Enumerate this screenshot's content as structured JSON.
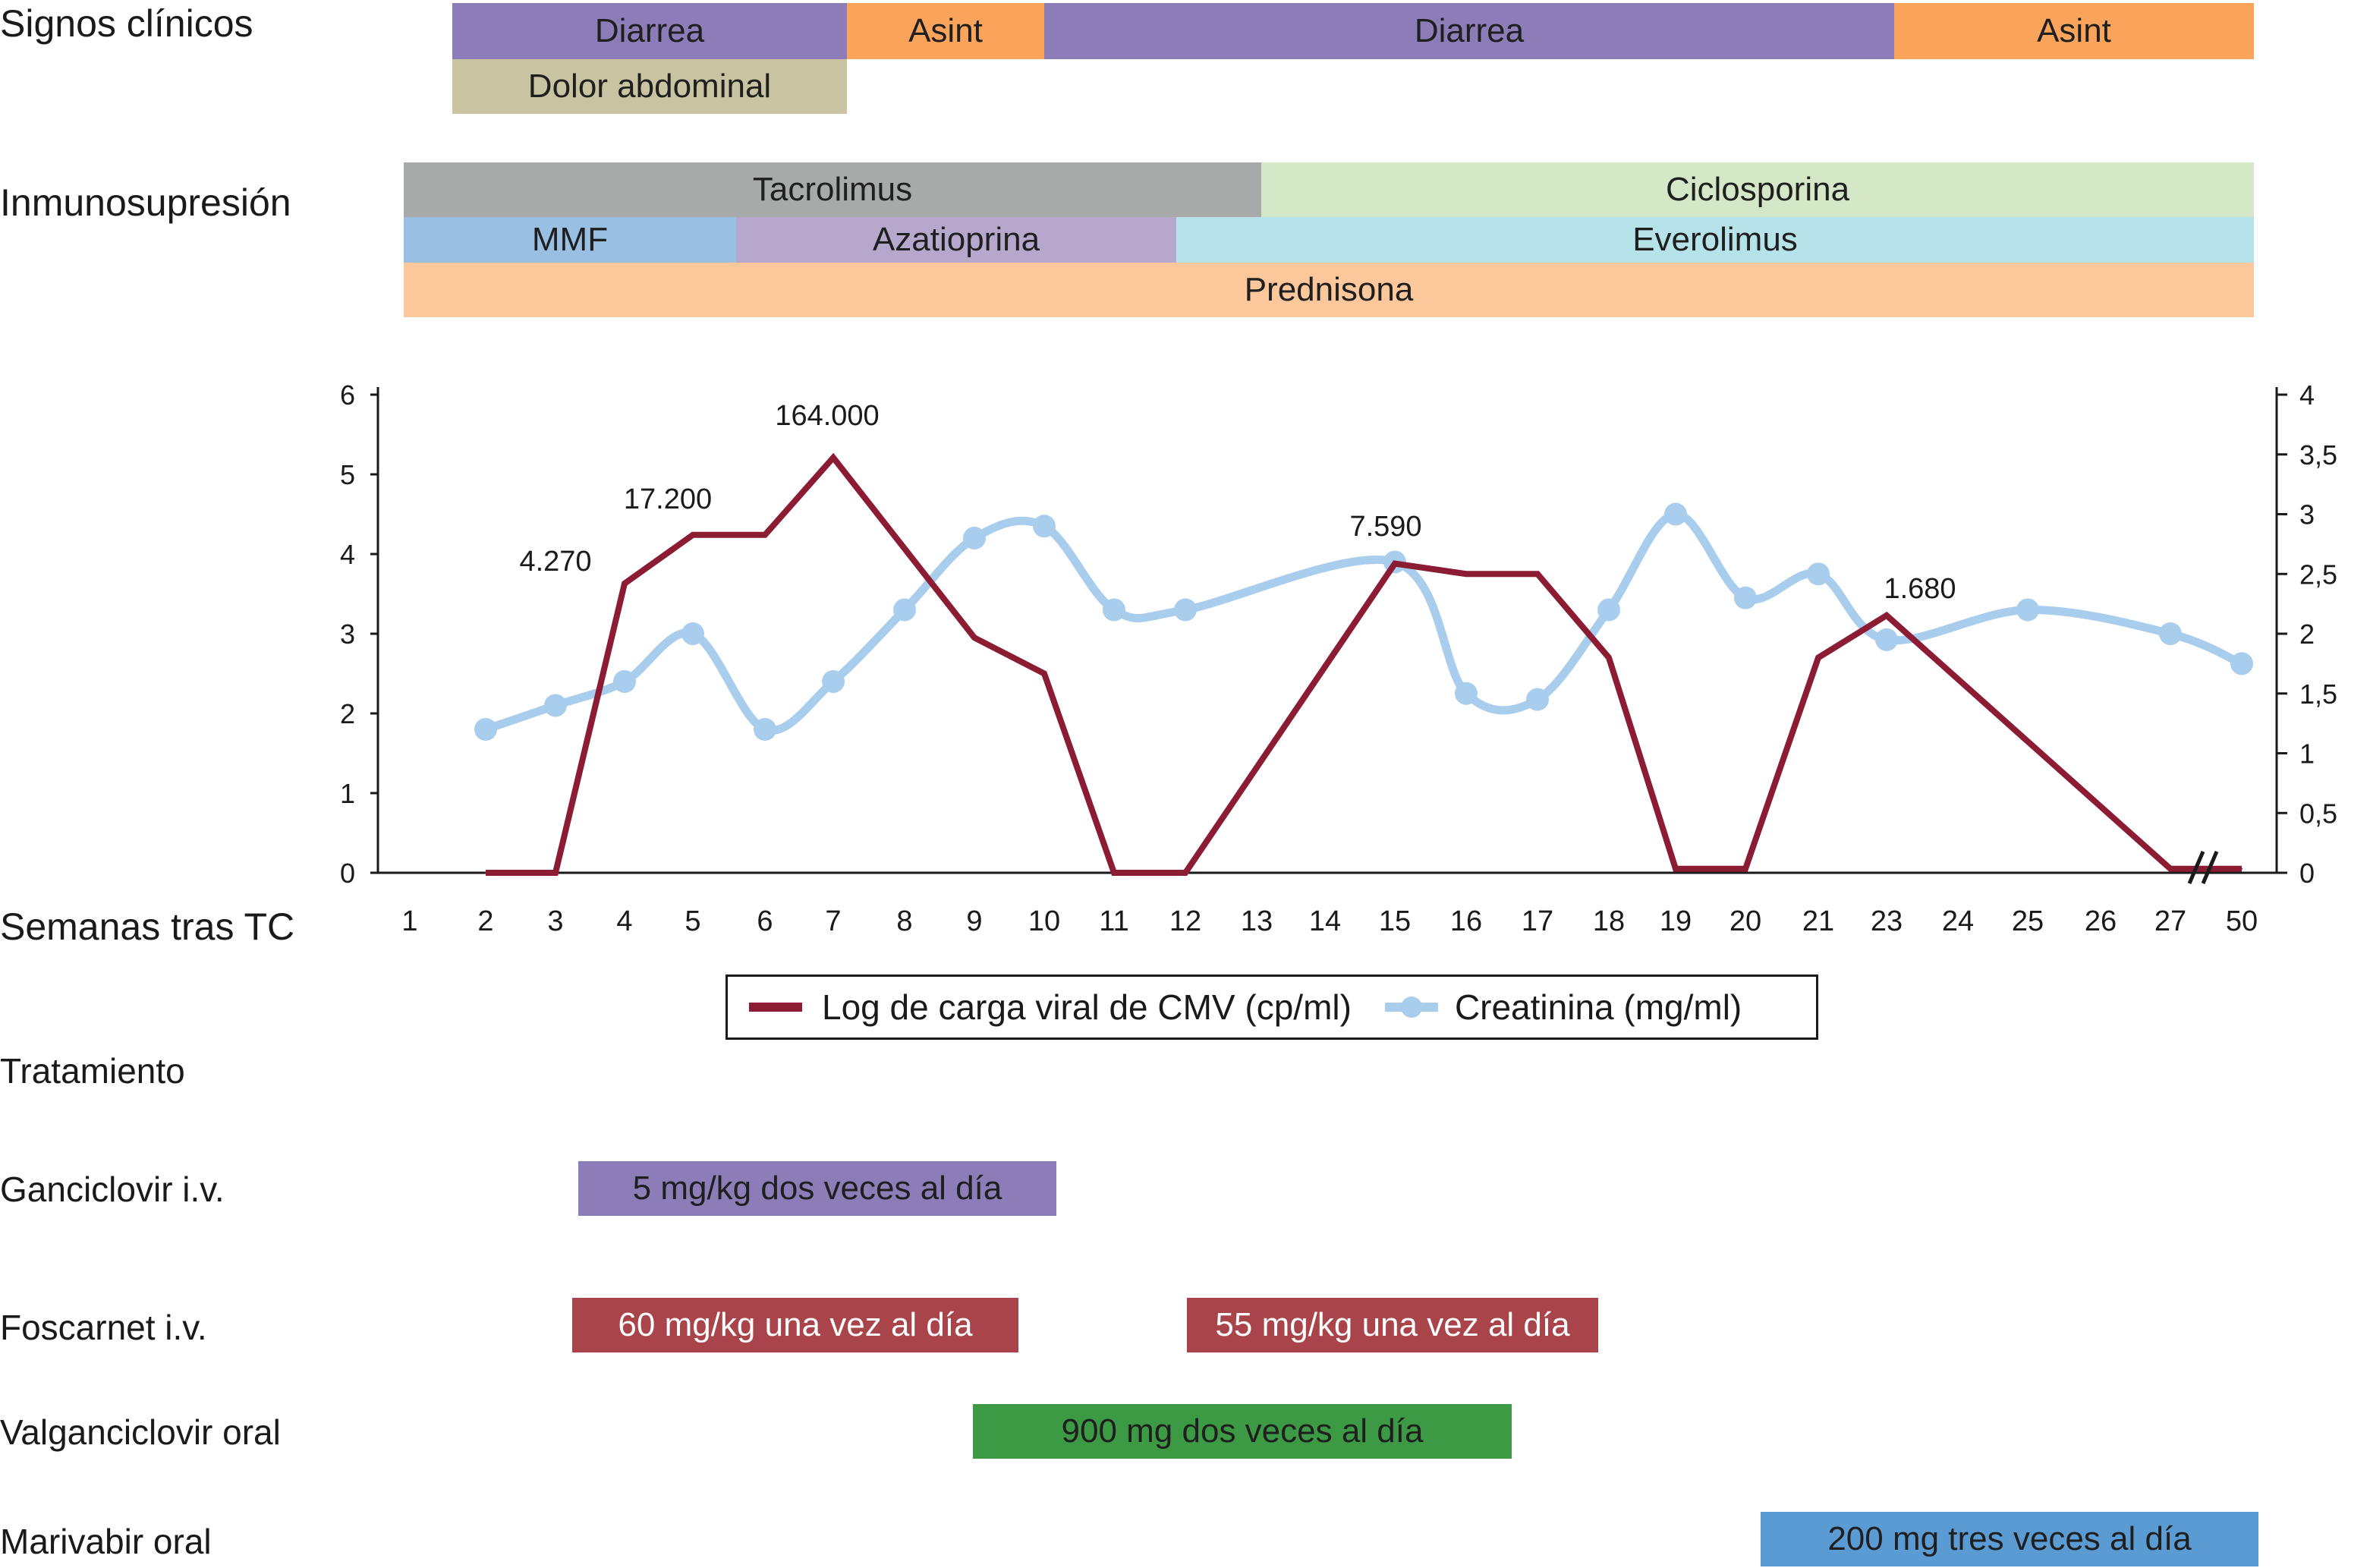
{
  "colors": {
    "viral_line": "#8b1c33",
    "creatinine_line": "#a9cdec",
    "diarrea": "#8c7cb8",
    "asint": "#f9a45a",
    "dolor": "#c8c3a0",
    "tacrolimus": "#a7aaa9",
    "ciclosporina": "#d4e7c6",
    "mmf": "#99bfe2",
    "azatioprina": "#b6a8cd",
    "everolimus": "#b5e3e9",
    "prednisona": "#fcc79b",
    "ganciclovir": "#8c7cb8",
    "foscarnet": "#a8444a",
    "valganciclovir": "#3d9a44",
    "maribavir": "#5b9bd3"
  },
  "labels": {
    "signos": "Signos clínicos",
    "inmuno": "Inmunosupresión",
    "semanas": "Semanas tras TC",
    "tratamiento": "Tratamiento",
    "ganciclovir": "Ganciclovir i.v.",
    "foscarnet": "Foscarnet i.v.",
    "valganciclovir": "Valganciclovir oral",
    "maribavir": "Marivabir oral"
  },
  "bands": {
    "signos": [
      "Diarrea",
      "Asint",
      "Diarrea",
      "Asint",
      "Dolor abdominal"
    ],
    "inmuno": [
      "Tacrolimus",
      "Ciclosporina",
      "MMF",
      "Azatioprina",
      "Everolimus",
      "Prednisona"
    ],
    "tratamiento": {
      "ganciclovir": "5 mg/kg dos veces al día",
      "foscarnet_1": "60 mg/kg una vez al día",
      "foscarnet_2": "55 mg/kg una vez al día",
      "valganciclovir": "900 mg dos veces al día",
      "maribavir": "200 mg tres veces al día"
    }
  },
  "legend": {
    "viral": "Log de carga viral de CMV (cp/ml)",
    "creatinine": "Creatinina (mg/ml)"
  },
  "chart_data": {
    "type": "line",
    "categories": [
      "1",
      "2",
      "3",
      "4",
      "5",
      "6",
      "7",
      "8",
      "9",
      "10",
      "11",
      "12",
      "13",
      "14",
      "15",
      "16",
      "17",
      "18",
      "19",
      "20",
      "21",
      "23",
      "24",
      "25",
      "26",
      "27",
      "50"
    ],
    "y_left": {
      "ylim": [
        0,
        6
      ],
      "ticks": [
        "0",
        "1",
        "2",
        "3",
        "4",
        "5",
        "6"
      ]
    },
    "y_right": {
      "ylim": [
        0,
        4
      ],
      "ticks": [
        "0",
        "0,5",
        "1",
        "1,5",
        "2",
        "2,5",
        "3",
        "3,5",
        "4"
      ]
    },
    "series": [
      {
        "name": "Log de carga viral de CMV (cp/ml)",
        "axis": "left",
        "points": [
          [
            "2",
            0
          ],
          [
            "3",
            0
          ],
          [
            "4",
            3.63
          ],
          [
            "5",
            4.24
          ],
          [
            "6",
            4.24
          ],
          [
            "7",
            5.21
          ],
          [
            "9",
            2.95
          ],
          [
            "10",
            2.5
          ],
          [
            "11",
            0
          ],
          [
            "12",
            0
          ],
          [
            "15",
            3.88
          ],
          [
            "16",
            3.75
          ],
          [
            "17",
            3.75
          ],
          [
            "18",
            2.7
          ],
          [
            "19",
            0.05
          ],
          [
            "20",
            0.05
          ],
          [
            "21",
            2.7
          ],
          [
            "23",
            3.23
          ],
          [
            "27",
            0.05
          ],
          [
            "50",
            0.05
          ]
        ]
      },
      {
        "name": "Creatinina (mg/ml)",
        "axis": "right",
        "points": [
          [
            "2",
            1.2
          ],
          [
            "3",
            1.4
          ],
          [
            "4",
            1.6
          ],
          [
            "5",
            2.0
          ],
          [
            "6",
            1.2
          ],
          [
            "7",
            1.6
          ],
          [
            "8",
            2.2
          ],
          [
            "9",
            2.8
          ],
          [
            "10",
            2.9
          ],
          [
            "11",
            2.2
          ],
          [
            "12",
            2.2
          ],
          [
            "15",
            2.6
          ],
          [
            "16",
            1.5
          ],
          [
            "17",
            1.45
          ],
          [
            "18",
            2.2
          ],
          [
            "19",
            3.0
          ],
          [
            "20",
            2.3
          ],
          [
            "21",
            2.5
          ],
          [
            "23",
            1.95
          ],
          [
            "25",
            2.2
          ],
          [
            "27",
            2.0
          ],
          [
            "50",
            1.75
          ]
        ]
      }
    ],
    "annotations": [
      {
        "text": "4.270",
        "x": "3"
      },
      {
        "text": "17.200",
        "x": "5"
      },
      {
        "text": "164.000",
        "x": "7"
      },
      {
        "text": "7.590",
        "x": "15"
      },
      {
        "text": "1.680",
        "x": "23"
      }
    ]
  }
}
